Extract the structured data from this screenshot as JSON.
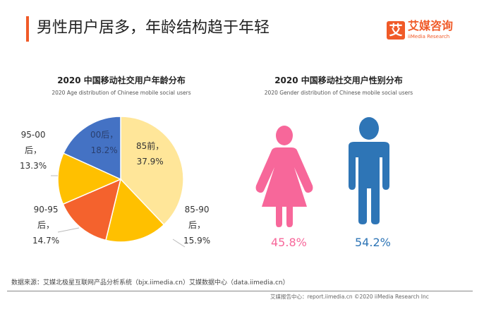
{
  "header": {
    "title": "男性用户居多，年龄结构趋于年轻",
    "logo_icon_char": "艾",
    "logo_cn": "艾媒咨询",
    "logo_en": "iiMedia Research",
    "accent": "#F05A28"
  },
  "chart_data": [
    {
      "type": "pie",
      "title": "2020 中国移动社交用户年龄分布",
      "subtitle": "2020 Age distribution of Chinese mobile social users",
      "slices": [
        {
          "label": "85前，",
          "value": 37.9,
          "value_label": "37.9%",
          "color": "#FFE699"
        },
        {
          "label_lines": [
            "85-90",
            "后，"
          ],
          "value": 15.9,
          "value_label": "15.9%",
          "color": "#FFC000"
        },
        {
          "label_lines": [
            "90-95",
            "后，"
          ],
          "value": 14.7,
          "value_label": "14.7%",
          "color": "#F4622D"
        },
        {
          "label_lines": [
            "95-00",
            "后，"
          ],
          "value": 13.3,
          "value_label": "13.3%",
          "color": "#FFC000"
        },
        {
          "label": "00后，",
          "value": 18.2,
          "value_label": "18.2%",
          "color": "#4472C4"
        }
      ],
      "unit": "%"
    },
    {
      "type": "pictogram",
      "title": "2020 中国移动社交用户性别分布",
      "subtitle": "2020 Gender distribution of Chinese mobile social users",
      "items": [
        {
          "icon": "female-icon",
          "value": 45.8,
          "value_label": "45.8%",
          "color": "#F7679A"
        },
        {
          "icon": "male-icon",
          "value": 54.2,
          "value_label": "54.2%",
          "color": "#2E75B6"
        }
      ]
    }
  ],
  "footer": {
    "source": "数据来源：艾媒北极星互联网产品分析系统（bjx.iimedia.cn）艾媒数据中心（data.iimedia.cn）",
    "credit": "艾媒报告中心：report.iimedia.cn   ©2020  iiMedia Research  Inc"
  }
}
